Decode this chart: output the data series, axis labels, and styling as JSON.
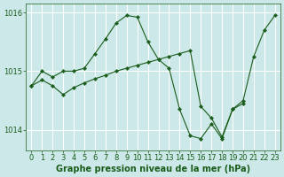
{
  "title": "Graphe pression niveau de la mer (hPa)",
  "bg_color": "#cce8e8",
  "grid_color": "#ffffff",
  "line_color": "#1a5c1a",
  "marker_color": "#1a5c1a",
  "series1_x": [
    0,
    1,
    2,
    3,
    4,
    5,
    6,
    7,
    8,
    9,
    10,
    11,
    12,
    13,
    14,
    15,
    16,
    17,
    18,
    19,
    20,
    21,
    22,
    23
  ],
  "series1_y": [
    1014.75,
    1015.0,
    1014.9,
    1015.0,
    1015.0,
    1015.05,
    1015.3,
    1015.55,
    1015.82,
    1015.95,
    1015.92,
    1015.5,
    1015.2,
    1015.05,
    1014.35,
    1013.9,
    1013.85,
    1014.1,
    1013.85,
    1014.35,
    1014.5,
    1015.25,
    1015.7,
    1015.95
  ],
  "series2_x": [
    0,
    1,
    2,
    3,
    4,
    5,
    6,
    7,
    8,
    9,
    10,
    11,
    12,
    13,
    14,
    15,
    16,
    17,
    18,
    19,
    20
  ],
  "series2_y": [
    1014.75,
    1014.85,
    1014.75,
    1014.6,
    1014.72,
    1014.8,
    1014.87,
    1014.93,
    1015.0,
    1015.05,
    1015.1,
    1015.15,
    1015.2,
    1015.25,
    1015.3,
    1015.35,
    1014.4,
    1014.2,
    1013.88,
    1014.35,
    1014.45
  ],
  "ylim": [
    1013.65,
    1016.15
  ],
  "yticks": [
    1014,
    1015,
    1016
  ],
  "xlim": [
    -0.5,
    23.5
  ],
  "xticks": [
    0,
    1,
    2,
    3,
    4,
    5,
    6,
    7,
    8,
    9,
    10,
    11,
    12,
    13,
    14,
    15,
    16,
    17,
    18,
    19,
    20,
    21,
    22,
    23
  ],
  "tick_fontsize": 6,
  "title_fontsize": 7
}
